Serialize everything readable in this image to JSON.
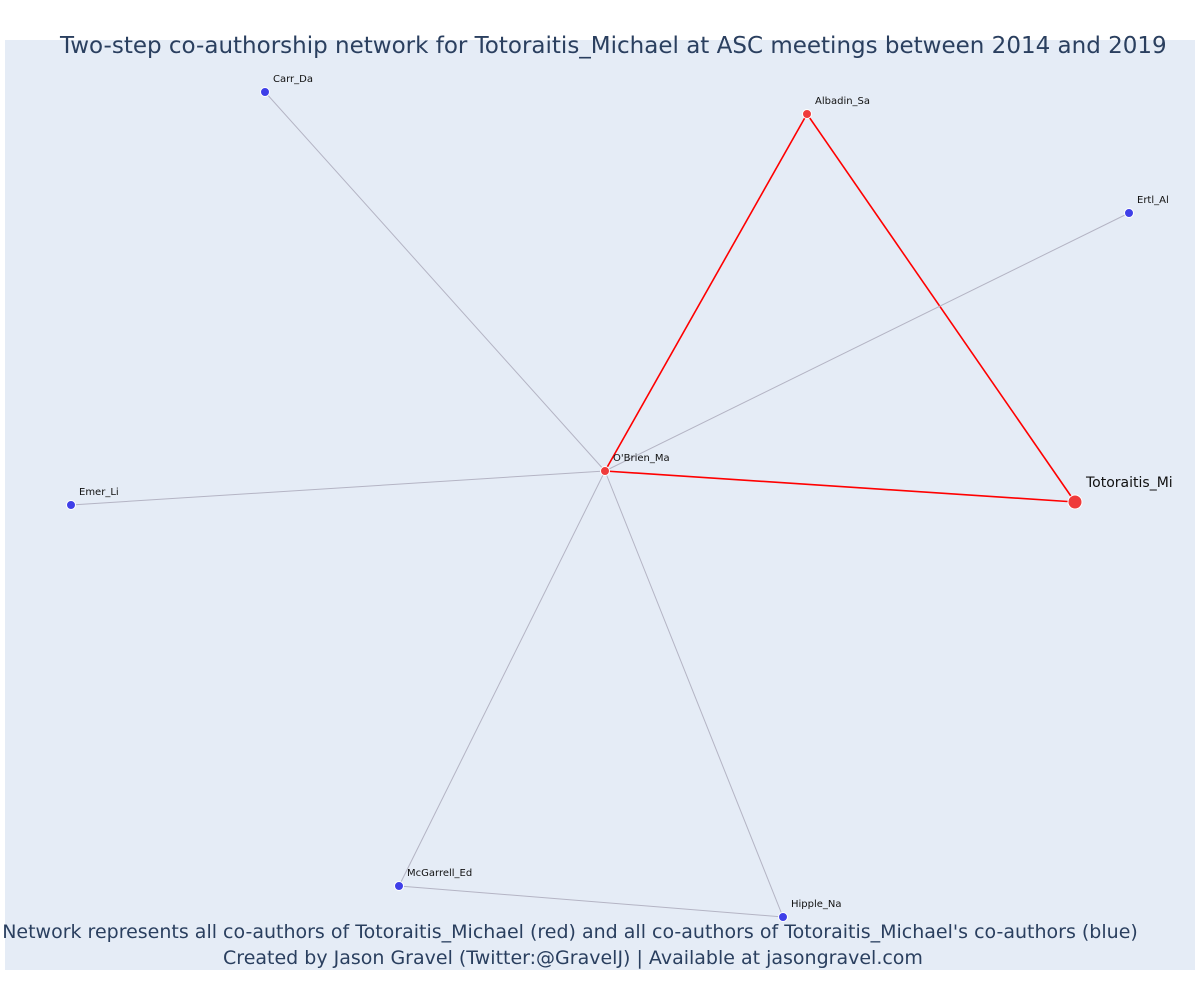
{
  "title": "Two-step co-authorship network for Totoraitis_Michael at ASC meetings between 2014 and 2019",
  "footer_line1": "Network represents all co-authors of Totoraitis_Michael (red) and all co-authors of Totoraitis_Michael's co-authors (blue)",
  "footer_line2": "Created by Jason Gravel (Twitter:@GravelJ) | Available at jasongravel.com",
  "colors": {
    "background": "#e5ecf6",
    "first_degree": "#ef3b3b",
    "second_degree": "#3f3fe8",
    "strong_edge": "#ff0000",
    "weak_edge": "#b4b4c4",
    "text": "#2a3f5f"
  },
  "nodes": [
    {
      "id": "Totoraitis_Mi",
      "group": "ego"
    },
    {
      "id": "O'Brien_Ma",
      "group": "first"
    },
    {
      "id": "Albadin_Sa",
      "group": "first"
    },
    {
      "id": "Carr_Da",
      "group": "second"
    },
    {
      "id": "Ertl_Al",
      "group": "second"
    },
    {
      "id": "Emer_Li",
      "group": "second"
    },
    {
      "id": "McGarrell_Ed",
      "group": "second"
    },
    {
      "id": "Hipple_Na",
      "group": "second"
    }
  ],
  "edges": [
    {
      "source": "Totoraitis_Mi",
      "target": "O'Brien_Ma",
      "type": "strong"
    },
    {
      "source": "Totoraitis_Mi",
      "target": "Albadin_Sa",
      "type": "strong"
    },
    {
      "source": "O'Brien_Ma",
      "target": "Albadin_Sa",
      "type": "strong"
    },
    {
      "source": "O'Brien_Ma",
      "target": "Carr_Da",
      "type": "weak"
    },
    {
      "source": "O'Brien_Ma",
      "target": "Ertl_Al",
      "type": "weak"
    },
    {
      "source": "O'Brien_Ma",
      "target": "Emer_Li",
      "type": "weak"
    },
    {
      "source": "O'Brien_Ma",
      "target": "McGarrell_Ed",
      "type": "weak"
    },
    {
      "source": "O'Brien_Ma",
      "target": "Hipple_Na",
      "type": "weak"
    },
    {
      "source": "McGarrell_Ed",
      "target": "Hipple_Na",
      "type": "weak"
    }
  ]
}
